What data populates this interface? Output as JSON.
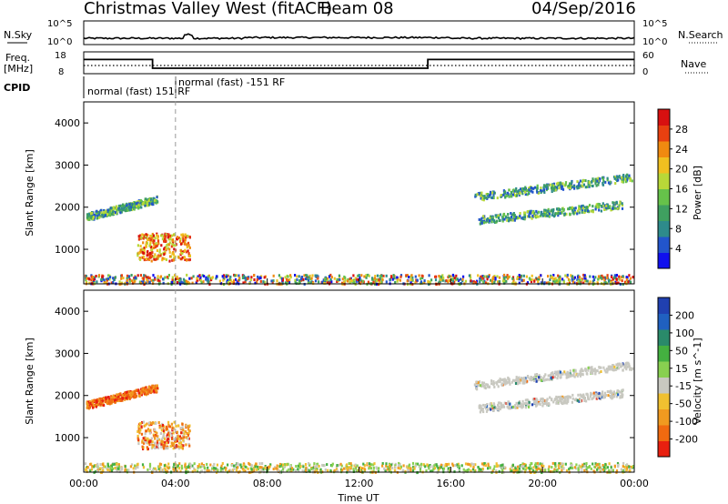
{
  "header": {
    "title": "Christmas Valley West (fitACF)",
    "beam": "Beam 08",
    "date": "04/Sep/2016"
  },
  "top_panels": {
    "nsky_label": "N.Sky",
    "nsearch_label": "N.Search",
    "freq_label_1": "Freq.",
    "freq_label_2": "[MHz]",
    "nave_label": "Nave",
    "cpid_label": "CPID",
    "nsky_ticks": [
      "10^5",
      "10^0"
    ],
    "nsearch_ticks": [
      "10^5",
      "10^0"
    ],
    "freq_ticks": [
      "18",
      "8"
    ],
    "nave_ticks": [
      "60",
      "0"
    ],
    "cpid_segments": [
      {
        "label": "normal (fast) 151 RF",
        "start_hour": 0.0
      },
      {
        "label": "normal (fast) -151 RF",
        "start_hour": 4.0
      }
    ],
    "freq_steps": [
      {
        "from": 0.0,
        "to": 3.0,
        "mhz": 14.5
      },
      {
        "from": 3.0,
        "to": 15.0,
        "mhz": 10.5
      },
      {
        "from": 15.0,
        "to": 24.0,
        "mhz": 14.5
      }
    ]
  },
  "chart_data": [
    {
      "type": "heatmap",
      "title": "",
      "xlabel": "",
      "ylabel": "Slant Range [km]",
      "xlim": [
        0,
        24
      ],
      "ylim": [
        180,
        4500
      ],
      "yticks": [
        "1000",
        "2000",
        "3000",
        "4000"
      ],
      "colorbar_label": "Power [dB]",
      "colorbar_ticks": [
        "4",
        "8",
        "12",
        "16",
        "20",
        "24",
        "28"
      ],
      "colorbar_colors": [
        "#1010ee",
        "#2255cc",
        "#2e8b8b",
        "#3fa060",
        "#66c24a",
        "#b8d838",
        "#f0c020",
        "#f08a10",
        "#e84010",
        "#d81010"
      ],
      "features": [
        {
          "name": "near-range band",
          "t0": 0.0,
          "t1": 24.0,
          "r0": 200,
          "r1": 420
        },
        {
          "name": "E-region echo",
          "t0": 2.3,
          "t1": 4.6,
          "r0": 750,
          "r1": 1400
        },
        {
          "name": "early arc",
          "t0": 0.1,
          "t1": 3.2,
          "r0": 1650,
          "r1": 2350
        },
        {
          "name": "late arc upper",
          "t0": 17.0,
          "t1": 23.9,
          "r0": 2100,
          "r1": 2900
        },
        {
          "name": "late arc lower",
          "t0": 17.2,
          "t1": 23.5,
          "r0": 1600,
          "r1": 2200
        }
      ]
    },
    {
      "type": "heatmap",
      "title": "",
      "xlabel": "Time UT",
      "ylabel": "Slant Range [km]",
      "xlim": [
        0,
        24
      ],
      "ylim": [
        180,
        4500
      ],
      "xticks": [
        "00:00",
        "04:00",
        "08:00",
        "12:00",
        "16:00",
        "20:00",
        "00:00"
      ],
      "yticks": [
        "1000",
        "2000",
        "3000",
        "4000"
      ],
      "colorbar_label": "Velocity [m s^-1]",
      "colorbar_ticks": [
        "200",
        "100",
        "50",
        "15",
        "-15",
        "-50",
        "-100",
        "-200"
      ],
      "colorbar_colors": [
        "#2040b0",
        "#2060c0",
        "#2a8a6a",
        "#44b040",
        "#88d050",
        "#c8c8c0",
        "#f0c030",
        "#f09a20",
        "#f06a10",
        "#e82010"
      ],
      "features": [
        {
          "name": "near-range band",
          "t0": 0.0,
          "t1": 24.0,
          "r0": 200,
          "r1": 420
        },
        {
          "name": "E-region echo",
          "t0": 2.3,
          "t1": 4.6,
          "r0": 750,
          "r1": 1400
        },
        {
          "name": "early arc",
          "t0": 0.1,
          "t1": 3.2,
          "r0": 1650,
          "r1": 2350
        },
        {
          "name": "late arc upper",
          "t0": 17.0,
          "t1": 23.9,
          "r0": 2100,
          "r1": 2900
        },
        {
          "name": "late arc lower",
          "t0": 17.2,
          "t1": 23.5,
          "r0": 1600,
          "r1": 2200
        }
      ]
    }
  ]
}
